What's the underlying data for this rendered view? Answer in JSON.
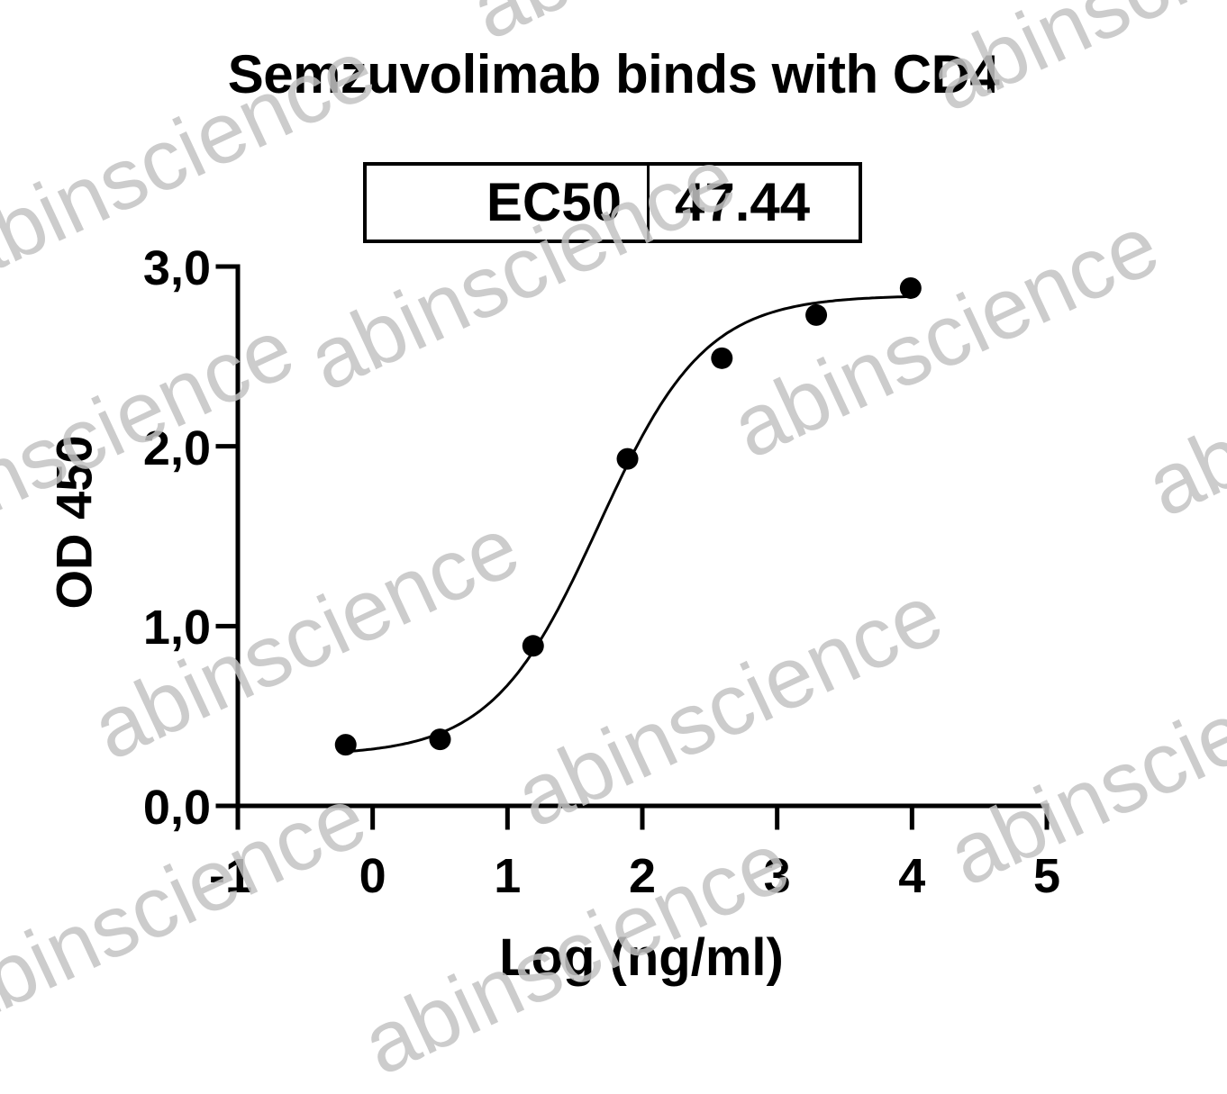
{
  "chart_data": {
    "type": "scatter",
    "title": "Semzuvolimab binds with CD4",
    "xlabel": "Log (ng/ml)",
    "ylabel": "OD 450",
    "xlim": [
      -1,
      5
    ],
    "ylim": [
      0,
      3
    ],
    "x_ticks": [
      "-1",
      "0",
      "1",
      "2",
      "3",
      "4",
      "5"
    ],
    "x_tick_values": [
      -1,
      0,
      1,
      2,
      3,
      4,
      5
    ],
    "y_ticks": [
      "0,0",
      "1,0",
      "2,0",
      "3,0"
    ],
    "y_tick_values": [
      0,
      1,
      2,
      3
    ],
    "grid": false,
    "series": [
      {
        "name": "Semzuvolimab",
        "marker": "filled-circle",
        "x": [
          -0.2,
          0.5,
          1.19,
          1.89,
          2.59,
          3.29,
          3.99
        ],
        "y": [
          0.34,
          0.37,
          0.89,
          1.93,
          2.49,
          2.73,
          2.88
        ]
      }
    ],
    "fit_curve": {
      "model": "4PL sigmoidal",
      "bottom": 0.28,
      "top": 2.84,
      "log_ec50": 1.676,
      "hill_slope": 1.1,
      "x_range": [
        -0.2,
        4.0
      ]
    },
    "annotation_table": {
      "label": "EC50",
      "value": "47.44"
    },
    "watermark": "abinscience"
  },
  "colors": {
    "foreground": "#000000",
    "background": "#ffffff",
    "watermark": "#c4c4c4"
  }
}
